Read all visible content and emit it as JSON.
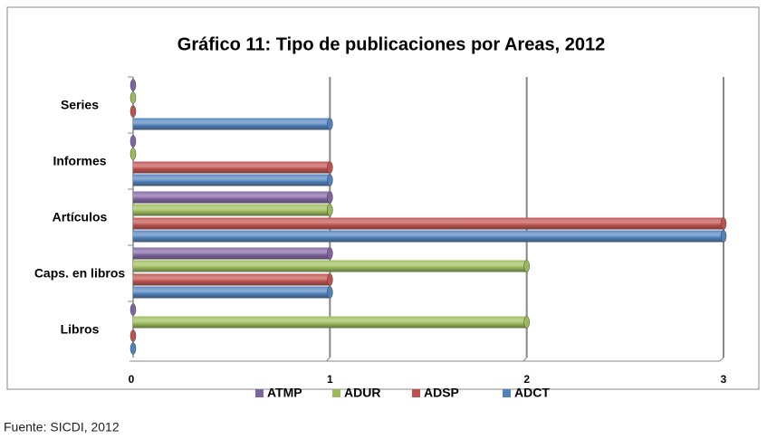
{
  "chart_data": {
    "type": "bar",
    "orientation": "horizontal",
    "title": "Gráfico 11: Tipo de publicaciones por Areas, 2012",
    "categories": [
      "Series",
      "Informes",
      "Artículos",
      "Caps. en libros",
      "Libros"
    ],
    "series": [
      {
        "name": "ATMP",
        "color": "#8064a2",
        "values": [
          0,
          0,
          1,
          1,
          0
        ]
      },
      {
        "name": "ADUR",
        "color": "#9bbb59",
        "values": [
          0,
          0,
          1,
          2,
          2
        ]
      },
      {
        "name": "ADSP",
        "color": "#c0504d",
        "values": [
          0,
          1,
          3,
          1,
          0
        ]
      },
      {
        "name": "ADCT",
        "color": "#4f81bd",
        "values": [
          1,
          1,
          3,
          1,
          0
        ]
      }
    ],
    "xlim": [
      0,
      3
    ],
    "xticks": [
      0,
      1,
      2,
      3
    ],
    "grid": true,
    "legend": "bottom",
    "source": "Fuente: SICDI, 2012"
  }
}
